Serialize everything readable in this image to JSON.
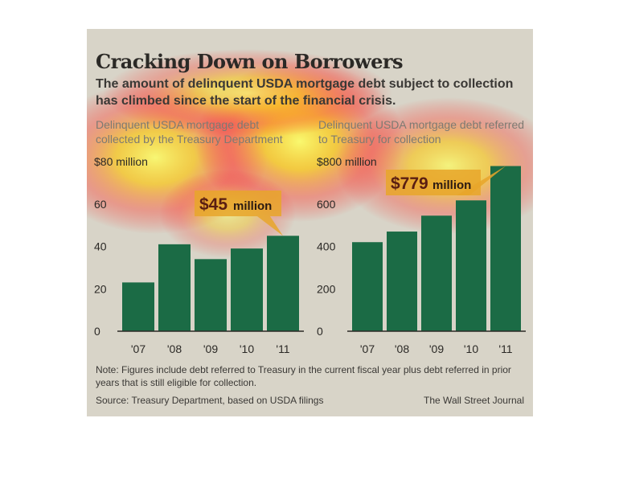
{
  "title": "Cracking Down on Borrowers",
  "subtitle": "The amount of delinquent USDA mortgage debt subject to collection has climbed since the start of the financial crisis.",
  "note": "Note: Figures include debt referred to Treasury in the current fiscal year plus debt referred in prior years that is still eligible for collection.",
  "source": "Source: Treasury Department, based on USDA filings",
  "credit": "The Wall Street Journal",
  "colors": {
    "bar": "#1b6b45",
    "callout": "#e8a62a",
    "axis": "#2b2926",
    "background": "#d8d4c8"
  },
  "chart_data": [
    {
      "type": "bar",
      "title": "Delinquent USDA mortgage debt collected by the Treasury Department",
      "categories": [
        "'07",
        "'08",
        "'09",
        "'10",
        "'11"
      ],
      "values": [
        23,
        41,
        34,
        39,
        45
      ],
      "ylim": [
        0,
        80
      ],
      "yticks": [
        0,
        20,
        40,
        60,
        80
      ],
      "ytick_labels": [
        "0",
        "20",
        "40",
        "60",
        "$80 million"
      ],
      "callout": {
        "value": "$45",
        "unit": "million"
      },
      "grid": false
    },
    {
      "type": "bar",
      "title": "Delinquent USDA mortgage debt referred to Treasury for collection",
      "categories": [
        "'07",
        "'08",
        "'09",
        "'10",
        "'11"
      ],
      "values": [
        420,
        470,
        545,
        617,
        779
      ],
      "ylim": [
        0,
        800
      ],
      "yticks": [
        0,
        200,
        400,
        600,
        800
      ],
      "ytick_labels": [
        "0",
        "200",
        "400",
        "600",
        "$800 million"
      ],
      "callout": {
        "value": "$779",
        "unit": "million"
      },
      "grid": false
    }
  ]
}
